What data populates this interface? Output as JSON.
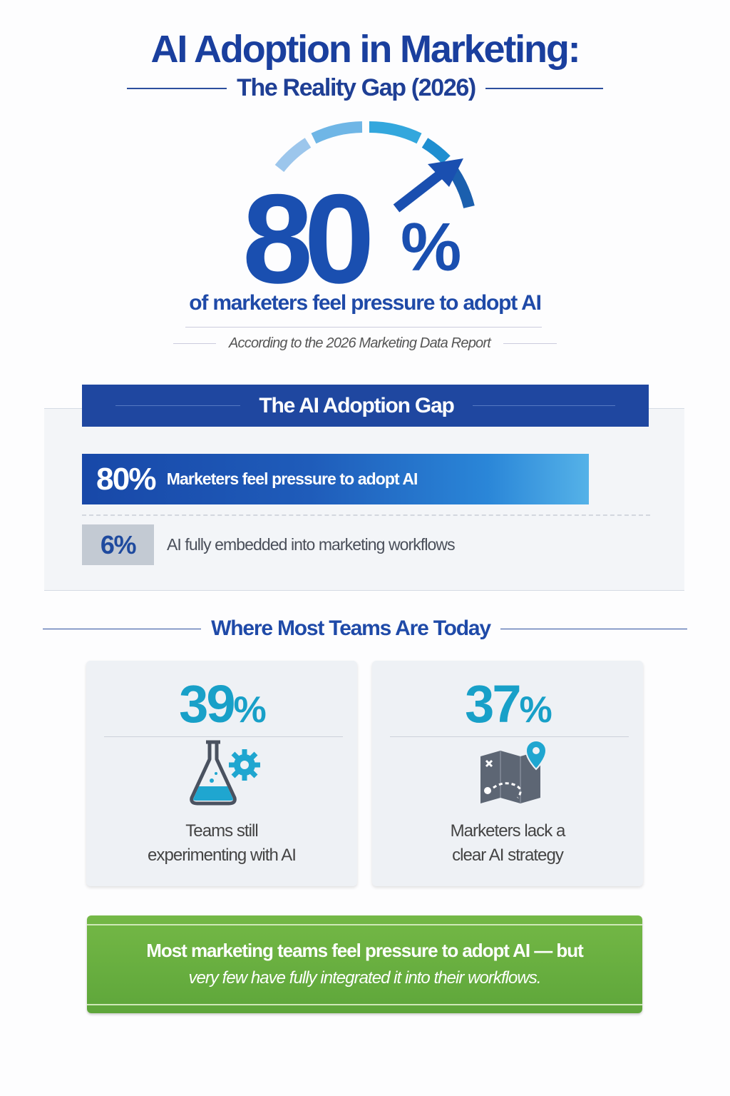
{
  "header": {
    "title": "AI Adoption in Marketing:",
    "subtitle": "The Reality Gap (2026)"
  },
  "hero": {
    "value": "80",
    "unit": "%",
    "headline": "of marketers feel pressure to adopt AI",
    "source": "According to the 2026 Marketing Data Report",
    "gauge_level": 0.8
  },
  "gap": {
    "title": "The AI Adoption Gap",
    "rows": [
      {
        "value": "80%",
        "label": "Marketers feel pressure to adopt AI",
        "fraction": 0.8
      },
      {
        "value": "6%",
        "label": "AI fully embedded into marketing workflows",
        "fraction": 0.06
      }
    ]
  },
  "today": {
    "title": "Where Most Teams Are Today",
    "cards": [
      {
        "value": "39",
        "unit": "%",
        "label_line1": "Teams still",
        "label_line2": "experimenting with AI",
        "icon": "flask-gear-icon"
      },
      {
        "value": "37",
        "unit": "%",
        "label_line1": "Marketers lack a",
        "label_line2": "clear AI strategy",
        "icon": "map-pin-icon"
      }
    ]
  },
  "banner": {
    "line1": "Most marketing teams feel pressure to adopt AI — but",
    "line2": "very few have fully integrated it into their workflows."
  },
  "colors": {
    "primary": "#1a3f9e",
    "accent": "#18a0c8",
    "banner": "#6ab040",
    "muted_box": "#c3cad3"
  }
}
